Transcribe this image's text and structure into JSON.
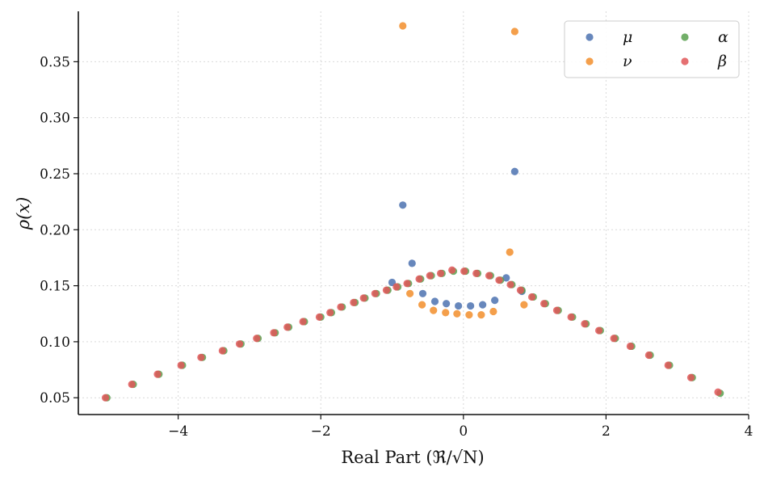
{
  "chart_data": {
    "type": "scatter",
    "title": "",
    "xlabel": "Real Part (ℜ/√N)",
    "ylabel": "ρ(x)",
    "xlim": [
      -5.4,
      4.0
    ],
    "ylim": [
      0.035,
      0.395
    ],
    "xticks": [
      -4,
      -2,
      0,
      2,
      4
    ],
    "xtick_labels": [
      "−4",
      "−2",
      "0",
      "2",
      "4"
    ],
    "yticks": [
      0.05,
      0.1,
      0.15,
      0.2,
      0.25,
      0.3,
      0.35
    ],
    "ytick_labels": [
      "0.05",
      "0.10",
      "0.15",
      "0.20",
      "0.25",
      "0.30",
      "0.35"
    ],
    "grid": true,
    "legend_position": "top-right",
    "series": [
      {
        "name": "μ",
        "color": "#4c72b0",
        "x": [
          -1.0,
          -0.72,
          -0.57,
          -0.4,
          -0.24,
          -0.07,
          0.1,
          0.27,
          0.44,
          0.6,
          0.82
        ],
        "y": [
          0.153,
          0.17,
          0.143,
          0.136,
          0.134,
          0.132,
          0.132,
          0.133,
          0.137,
          0.157,
          0.145
        ]
      },
      {
        "name": "μ-outliers",
        "legend": false,
        "color": "#4c72b0",
        "x": [
          -0.85,
          0.72
        ],
        "y": [
          0.222,
          0.252
        ]
      },
      {
        "name": "ν",
        "color": "#f28e2b",
        "x": [
          -0.85,
          0.72,
          0.65,
          -0.75,
          -0.58,
          -0.42,
          -0.25,
          -0.09,
          0.08,
          0.25,
          0.42,
          0.85
        ],
        "y": [
          0.382,
          0.377,
          0.18,
          0.143,
          0.133,
          0.128,
          0.126,
          0.125,
          0.124,
          0.124,
          0.127,
          0.133
        ]
      },
      {
        "name": "α",
        "color": "#59a14f",
        "x": [
          -5.0,
          -4.63,
          -4.27,
          -3.94,
          -3.66,
          -3.36,
          -3.12,
          -2.88,
          -2.64,
          -2.45,
          -2.23,
          -2.0,
          -1.85,
          -1.7,
          -1.52,
          -1.38,
          -1.22,
          -1.06,
          -0.92,
          -0.77,
          -0.6,
          -0.45,
          -0.3,
          -0.14,
          0.03,
          0.2,
          0.38,
          0.52,
          0.68,
          0.82,
          0.98,
          1.15,
          1.33,
          1.53,
          1.72,
          1.92,
          2.13,
          2.36,
          2.62,
          2.89,
          3.21,
          3.6
        ],
        "y": [
          0.05,
          0.062,
          0.071,
          0.079,
          0.086,
          0.092,
          0.098,
          0.103,
          0.108,
          0.113,
          0.118,
          0.122,
          0.126,
          0.131,
          0.135,
          0.139,
          0.143,
          0.146,
          0.149,
          0.152,
          0.156,
          0.159,
          0.161,
          0.163,
          0.163,
          0.161,
          0.159,
          0.155,
          0.151,
          0.146,
          0.14,
          0.134,
          0.128,
          0.122,
          0.116,
          0.11,
          0.103,
          0.096,
          0.088,
          0.079,
          0.068,
          0.054
        ]
      },
      {
        "name": "β",
        "color": "#e15759",
        "x": [
          -5.02,
          -4.65,
          -4.29,
          -3.96,
          -3.68,
          -3.38,
          -3.14,
          -2.9,
          -2.66,
          -2.47,
          -2.25,
          -2.02,
          -1.87,
          -1.72,
          -1.54,
          -1.4,
          -1.24,
          -1.08,
          -0.94,
          -0.79,
          -0.62,
          -0.47,
          -0.32,
          -0.16,
          0.01,
          0.18,
          0.36,
          0.5,
          0.66,
          0.8,
          0.96,
          1.13,
          1.31,
          1.51,
          1.7,
          1.9,
          2.11,
          2.34,
          2.6,
          2.87,
          3.19,
          3.57
        ],
        "y": [
          0.05,
          0.062,
          0.071,
          0.079,
          0.086,
          0.092,
          0.098,
          0.103,
          0.108,
          0.113,
          0.118,
          0.122,
          0.126,
          0.131,
          0.135,
          0.139,
          0.143,
          0.146,
          0.149,
          0.152,
          0.156,
          0.159,
          0.161,
          0.164,
          0.163,
          0.161,
          0.159,
          0.155,
          0.151,
          0.146,
          0.14,
          0.134,
          0.128,
          0.122,
          0.116,
          0.11,
          0.103,
          0.096,
          0.088,
          0.079,
          0.068,
          0.055
        ]
      }
    ]
  }
}
